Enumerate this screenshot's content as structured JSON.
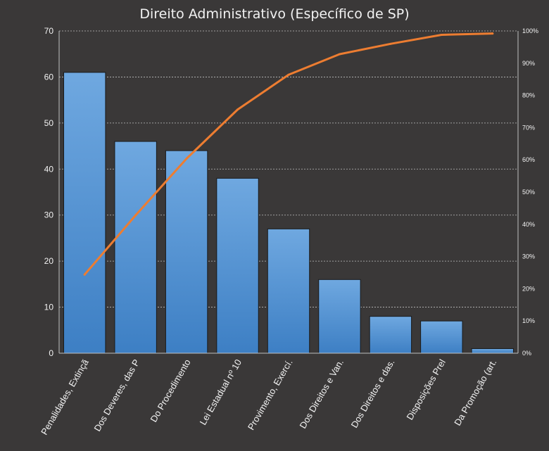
{
  "chart_data": {
    "type": "bar",
    "title": "Direito Administrativo (Específico de SP)",
    "categories": [
      "Penalidades, Extinçã",
      "Dos Deveres, das P",
      "Do Procedimento",
      "Lei Estadual nº 10",
      "Provimento, Exercí.",
      "Dos Direitos e Van.",
      "Dos Direitos e das.",
      "Disposições Prel",
      "Da Promoção (art."
    ],
    "series": [
      {
        "values": [
          61,
          46,
          44,
          38,
          27,
          16,
          8,
          7,
          1
        ]
      }
    ],
    "cumulative_percent": [
      24.4,
      42.8,
      60.4,
      75.6,
      86.4,
      92.8,
      96.0,
      98.8,
      99.2
    ],
    "ylim": [
      0,
      70
    ],
    "y_ticks": [
      "0",
      "10",
      "20",
      "30",
      "40",
      "50",
      "60",
      "70"
    ],
    "y2lim": [
      0,
      100
    ],
    "y2_ticks": [
      "0%",
      "10%",
      "20%",
      "30%",
      "40%",
      "50%",
      "60%",
      "70%",
      "80%",
      "90%",
      "100%"
    ],
    "grid": true,
    "colors": {
      "background": "#3a3838",
      "bar_top": "#6fa8e0",
      "bar_bottom": "#3d7fc4",
      "bar_edge": "#1a1a1a",
      "line": "#ed7d31",
      "grid": "#bfbfbf",
      "text": "#f2f2f2"
    }
  }
}
